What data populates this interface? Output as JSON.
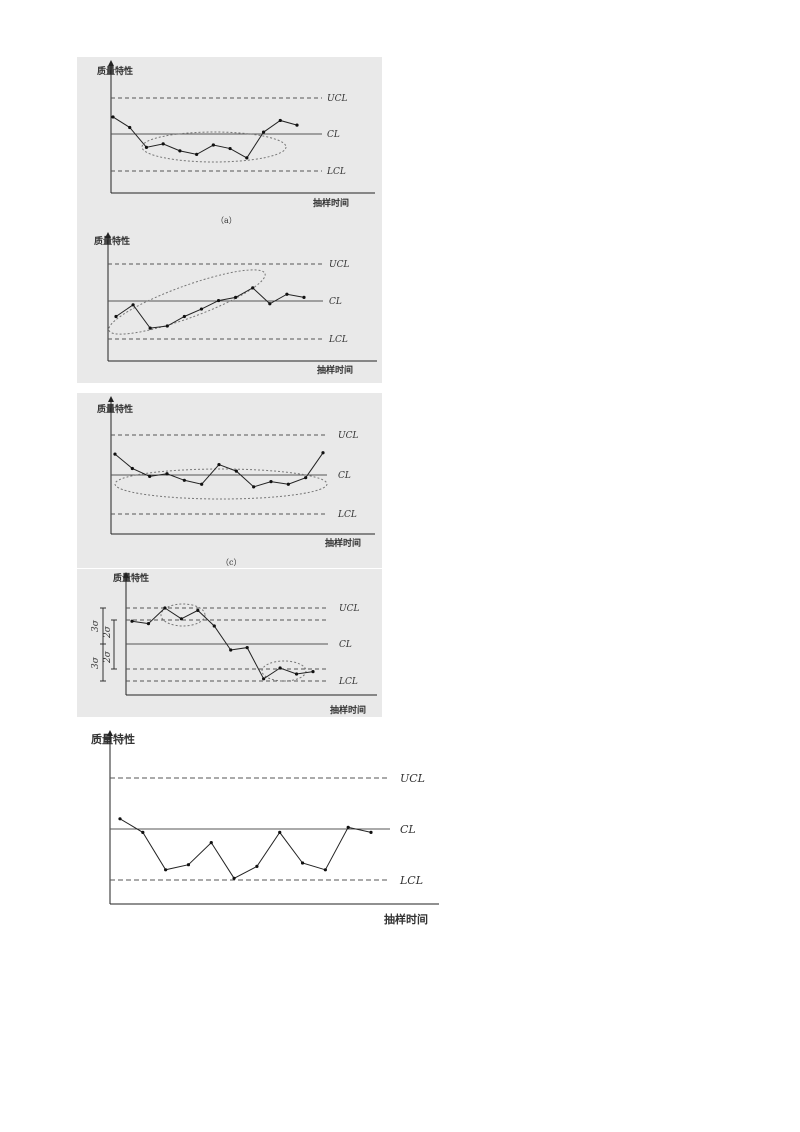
{
  "chart_data": [
    {
      "type": "line",
      "caption": "（a）",
      "y_axis_label": "质量特性",
      "x_axis_label": "抽样时间",
      "limit_labels": {
        "ucl": "UCL",
        "cl": "CL",
        "lcl": "LCL"
      },
      "ylim": [
        0,
        10
      ],
      "ucl": 8,
      "cl": 5,
      "lcl": 2,
      "values": [
        6.5,
        5.6,
        3.9,
        4.2,
        3.6,
        3.3,
        4.1,
        3.8,
        3.0,
        5.2,
        6.2,
        5.8
      ],
      "annotation": "run-below-centerline"
    },
    {
      "type": "line",
      "caption": "",
      "y_axis_label": "质量特性",
      "x_axis_label": "抽样时间",
      "limit_labels": {
        "ucl": "UCL",
        "cl": "CL",
        "lcl": "LCL"
      },
      "ylim": [
        0,
        10
      ],
      "ucl": 8,
      "cl": 5,
      "lcl": 2,
      "values": [
        4.2,
        5.3,
        3.1,
        3.3,
        4.2,
        4.9,
        5.7,
        6.0,
        6.9,
        5.4,
        6.3,
        6.0
      ],
      "annotation": "upward-trend"
    },
    {
      "type": "line",
      "caption": "（c）",
      "y_axis_label": "质量特性",
      "x_axis_label": "抽样时间",
      "limit_labels": {
        "ucl": "UCL",
        "cl": "CL",
        "lcl": "LCL"
      },
      "ylim": [
        0,
        10
      ],
      "ucl": 8,
      "cl": 5,
      "lcl": 2,
      "values": [
        6.1,
        5.0,
        4.4,
        4.6,
        4.1,
        3.8,
        5.3,
        4.8,
        3.6,
        4.0,
        3.8,
        4.3,
        6.2
      ],
      "annotation": "cluster-near-centerline"
    },
    {
      "type": "line",
      "caption": "",
      "y_axis_label": "质量特性",
      "x_axis_label": "抽样时间",
      "limit_labels": {
        "ucl": "UCL",
        "cl": "CL",
        "lcl": "LCL"
      },
      "ylim": [
        0,
        10
      ],
      "ucl": 8,
      "cl": 5,
      "lcl": 2,
      "sigma_lines": [
        7,
        3
      ],
      "sigma_labels": [
        "3σ",
        "2σ",
        "2σ",
        "3σ"
      ],
      "values": [
        6.9,
        6.7,
        8.0,
        7.1,
        7.8,
        6.5,
        4.5,
        4.7,
        2.1,
        3.0,
        2.5,
        2.7
      ],
      "annotation": "points-in-outer-zones"
    },
    {
      "type": "line",
      "caption": "",
      "y_axis_label": "质量特性",
      "x_axis_label": "抽样时间",
      "limit_labels": {
        "ucl": "UCL",
        "cl": "CL",
        "lcl": "LCL"
      },
      "ylim": [
        0,
        10
      ],
      "ucl": 8,
      "cl": 5,
      "lcl": 2,
      "values": [
        6.6,
        5.8,
        3.6,
        3.9,
        5.2,
        3.1,
        3.8,
        5.8,
        4.0,
        3.6,
        6.1,
        5.8
      ],
      "annotation": "normal"
    }
  ]
}
